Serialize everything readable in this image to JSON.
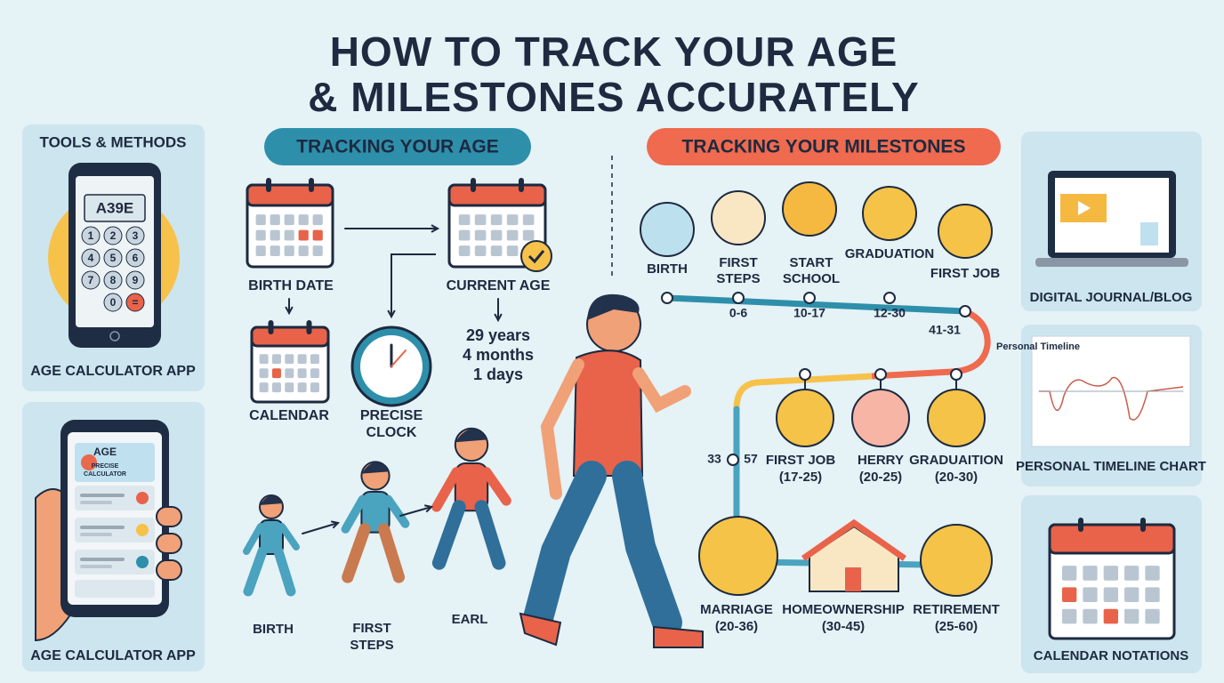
{
  "title": {
    "lines": [
      "HOW TO TRACK YOUR AGE",
      "& MILESTONES ACCURATELY"
    ]
  },
  "tools": {
    "heading": "TOOLS & METHODS",
    "calculator": {
      "display": "A39E",
      "keys": [
        "1",
        "2",
        "3",
        "4",
        "5",
        "6",
        "7",
        "8",
        "9",
        "0",
        "="
      ],
      "label": "AGE CALCULATOR APP"
    },
    "phone_app": {
      "title": "AGE",
      "subtitle": [
        "PRECISE",
        "CALCULATOR"
      ],
      "label": "AGE CALCULATOR APP"
    }
  },
  "age": {
    "heading": "TRACKING YOUR AGE",
    "birth_date": "BIRTH DATE",
    "current_age": "CURRENT AGE",
    "result": [
      "29 years",
      "4 months",
      "1 days"
    ],
    "calendar": "CALENDAR",
    "clock": [
      "PRECISE",
      "CLOCK"
    ],
    "stages": [
      [
        "BIRTH"
      ],
      [
        "FIRST",
        "STEPS"
      ],
      [
        "EARL"
      ]
    ]
  },
  "milestones": {
    "heading": "TRACKING YOUR MILESTONES",
    "top": [
      {
        "label": [
          "BIRTH"
        ]
      },
      {
        "label": [
          "FIRST",
          "STEPS"
        ],
        "range": "0-6"
      },
      {
        "label": [
          "START",
          "SCHOOL"
        ],
        "range": "10-17"
      },
      {
        "label": [
          "GRADUATION"
        ],
        "range": "12-30"
      },
      {
        "label": [
          "FIRST JOB"
        ],
        "range": "41-31"
      }
    ],
    "side_range": [
      "33",
      "57"
    ],
    "middle": [
      {
        "label": "FIRST JOB",
        "range": "(17-25)"
      },
      {
        "label": "HERRY",
        "range": "(20-25)"
      },
      {
        "label": "GRADUAITION",
        "range": "(20-30)"
      }
    ],
    "bottom": [
      {
        "label": "MARRIAGE",
        "range": "(20-36)"
      },
      {
        "label": "HOMEOWNERSHIP",
        "range": "(30-45)"
      },
      {
        "label": "RETIREMENT",
        "range": "(25-60)"
      }
    ]
  },
  "resources": {
    "journal": "DIGITAL JOURNAL/BLOG",
    "chart_title": "Personal Timeline",
    "chart": "PERSONAL TIMELINE CHART",
    "calendar": "CALENDAR NOTATIONS"
  }
}
